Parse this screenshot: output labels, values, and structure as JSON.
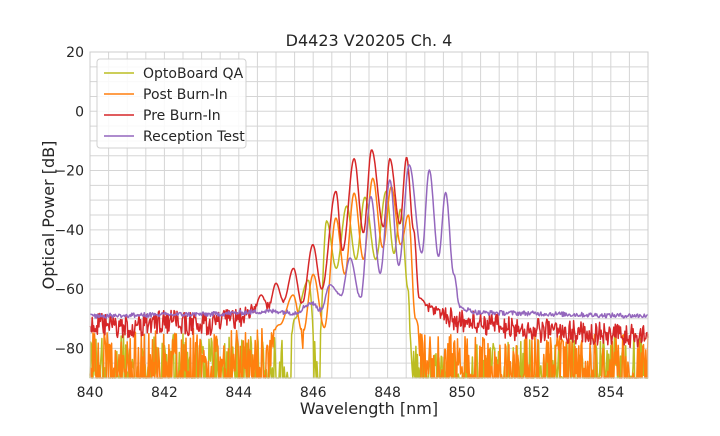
{
  "chart_data": {
    "type": "line",
    "title": "D4423 V20205 Ch. 4",
    "xlabel": "Wavelength [nm]",
    "ylabel": "Optical Power [dB]",
    "xlim": [
      840,
      855
    ],
    "ylim": [
      -90,
      20
    ],
    "xticks": [
      840,
      842,
      844,
      846,
      848,
      850,
      852,
      854
    ],
    "yticks": [
      20,
      0,
      -20,
      -40,
      -60,
      -80
    ],
    "grid": true,
    "minor_grid": {
      "x_step": 0.5,
      "y_step": 5
    },
    "legend_position": "top-left",
    "series": [
      {
        "name": "OptoBoard QA",
        "color": "#bcbd22",
        "noise": 9,
        "noise_floor": -84,
        "points": [
          [
            840,
            -84
          ],
          [
            845.1,
            -84
          ],
          [
            845.3,
            -90
          ],
          [
            845.5,
            -70
          ],
          [
            845.87,
            -57
          ],
          [
            846.12,
            -90
          ],
          [
            846.36,
            -37
          ],
          [
            846.62,
            -53
          ],
          [
            846.9,
            -32
          ],
          [
            847.15,
            -50
          ],
          [
            847.39,
            -29
          ],
          [
            847.68,
            -50
          ],
          [
            847.96,
            -27
          ],
          [
            848.17,
            -48
          ],
          [
            848.35,
            -33
          ],
          [
            848.55,
            -60
          ],
          [
            848.65,
            -88
          ],
          [
            855,
            -84
          ]
        ]
      },
      {
        "name": "Post Burn-In",
        "color": "#ff7f0e",
        "noise": 9,
        "noise_floor": -83,
        "points": [
          [
            840,
            -83
          ],
          [
            844.6,
            -82
          ],
          [
            845.1,
            -72
          ],
          [
            845.46,
            -62
          ],
          [
            845.72,
            -75
          ],
          [
            846.0,
            -55
          ],
          [
            846.3,
            -73
          ],
          [
            846.61,
            -36
          ],
          [
            846.85,
            -55
          ],
          [
            847.1,
            -27.6
          ],
          [
            847.35,
            -50
          ],
          [
            847.6,
            -22.6
          ],
          [
            847.87,
            -46
          ],
          [
            848.1,
            -25.4
          ],
          [
            848.35,
            -45
          ],
          [
            848.56,
            -35
          ],
          [
            848.75,
            -70
          ],
          [
            849.0,
            -84
          ],
          [
            855,
            -84
          ]
        ]
      },
      {
        "name": "Pre Burn-In",
        "color": "#d62728",
        "noise": 4,
        "noise_floor": -73,
        "points": [
          [
            840,
            -72
          ],
          [
            841,
            -73
          ],
          [
            842,
            -71
          ],
          [
            843,
            -72
          ],
          [
            844,
            -70
          ],
          [
            844.4,
            -67
          ],
          [
            844.6,
            -62
          ],
          [
            844.8,
            -66
          ],
          [
            845.0,
            -58
          ],
          [
            845.2,
            -64
          ],
          [
            845.47,
            -53
          ],
          [
            845.7,
            -65
          ],
          [
            845.99,
            -45
          ],
          [
            846.23,
            -60
          ],
          [
            846.61,
            -27
          ],
          [
            846.79,
            -47
          ],
          [
            847.1,
            -16
          ],
          [
            847.35,
            -41
          ],
          [
            847.57,
            -13
          ],
          [
            847.89,
            -39
          ],
          [
            848.06,
            -16
          ],
          [
            848.33,
            -38
          ],
          [
            848.51,
            -15.5
          ],
          [
            848.7,
            -40
          ],
          [
            848.85,
            -63
          ],
          [
            849.2,
            -67
          ],
          [
            850,
            -71
          ],
          [
            852,
            -74
          ],
          [
            855,
            -76
          ]
        ]
      },
      {
        "name": "Reception Test",
        "color": "#9467bd",
        "noise": 0.8,
        "noise_floor": -68,
        "points": [
          [
            840,
            -69
          ],
          [
            843,
            -68.5
          ],
          [
            845,
            -67.5
          ],
          [
            845.5,
            -68
          ],
          [
            845.96,
            -64.7
          ],
          [
            846.2,
            -67
          ],
          [
            846.45,
            -58.6
          ],
          [
            846.75,
            -62
          ],
          [
            846.99,
            -49.5
          ],
          [
            847.27,
            -63
          ],
          [
            847.55,
            -28.8
          ],
          [
            847.8,
            -54.7
          ],
          [
            848.06,
            -23.2
          ],
          [
            848.3,
            -52
          ],
          [
            848.58,
            -18.1
          ],
          [
            848.92,
            -47.8
          ],
          [
            849.12,
            -19.8
          ],
          [
            849.37,
            -49
          ],
          [
            849.56,
            -27.4
          ],
          [
            849.78,
            -55
          ],
          [
            849.95,
            -66.5
          ],
          [
            850.5,
            -68
          ],
          [
            855,
            -69
          ]
        ]
      }
    ]
  }
}
